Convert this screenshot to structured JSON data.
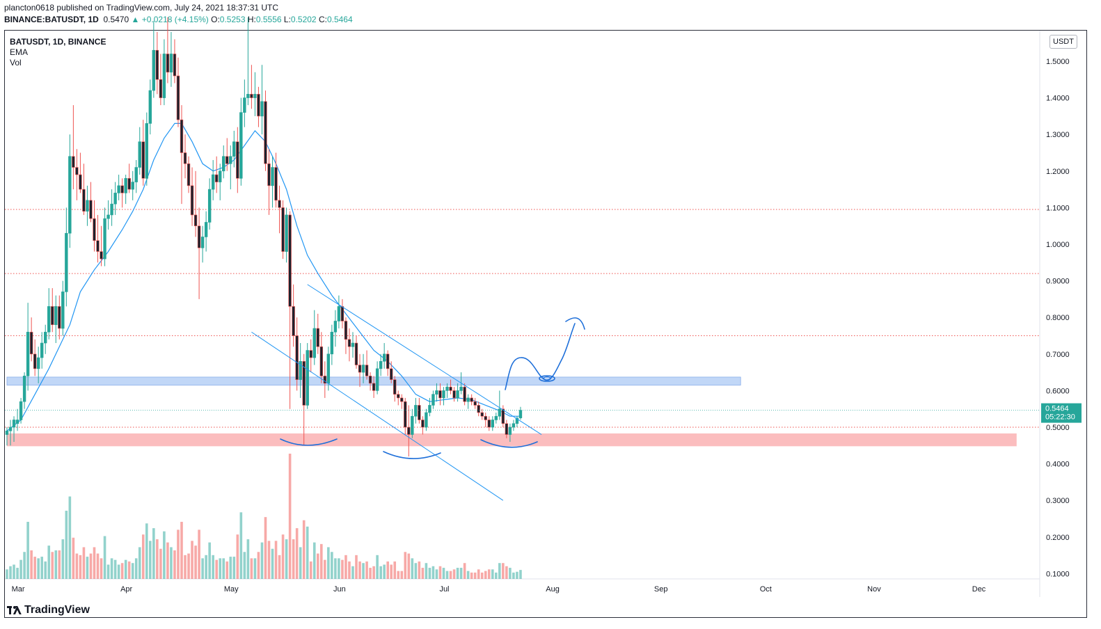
{
  "header": {
    "publisher_line": "plancton0618 published on TradingView.com, July 24, 2021 18:37:31 UTC",
    "symbol_full": "BINANCE:BATUSDT, 1D",
    "price": "0.5470",
    "change": "▲ +0.0218 (+4.15%)",
    "o_label": "O:",
    "o_value": "0.5253",
    "h_label": "H:",
    "h_value": "0.5556",
    "l_label": "L:",
    "l_value": "0.5202",
    "c_label": "C:",
    "c_value": "0.5464"
  },
  "legend": {
    "symbol": "BATUSDT, 1D, BINANCE",
    "indicator_1": "EMA",
    "indicator_2": "Vol"
  },
  "currency_button": "USDT",
  "last_price_label": "0.5464",
  "countdown_label": "05:22:30",
  "brand": "TradingView",
  "colors": {
    "up": "#26a69a",
    "down": "#ef5350",
    "ema": "#2196f3",
    "drawing": "#1e6fd9",
    "resistance_zone": "#bbd3f7",
    "support_zone": "#fbb9bb",
    "level_line": "#ef5350"
  },
  "chart_data": {
    "type": "candlestick",
    "symbol": "BATUSDT",
    "interval": "1D",
    "exchange": "BINANCE",
    "y_axis": {
      "ticks": [
        "1.5000",
        "1.4000",
        "1.3000",
        "1.2000",
        "1.1000",
        "1.0000",
        "0.9000",
        "0.8000",
        "0.7000",
        "0.6000",
        "0.5000",
        "0.4000",
        "0.3000",
        "0.2000",
        "0.1000"
      ],
      "ylim": [
        0.08,
        1.62
      ],
      "scale": "linear"
    },
    "x_axis": {
      "ticks": [
        "Mar",
        "Apr",
        "May",
        "Jun",
        "Jul",
        "Aug",
        "Sep",
        "Oct",
        "Nov",
        "Dec"
      ],
      "start_date": "2021-02-27",
      "end_date": "2021-12-16"
    },
    "horizontal_levels": [
      1.095,
      0.92,
      0.75,
      0.5
    ],
    "zones": [
      {
        "name": "resistance",
        "from_date": "2021-02-27",
        "to_date": "2021-09-25",
        "low": 0.615,
        "high": 0.637
      },
      {
        "name": "support",
        "from_date": "2021-02-27",
        "to_date": "2021-12-13",
        "low": 0.448,
        "high": 0.483
      }
    ],
    "trendlines": [
      {
        "from": [
          "2021-05-24",
          0.89
        ],
        "to": [
          "2021-07-30",
          0.48
        ]
      },
      {
        "from": [
          "2021-05-08",
          0.76
        ],
        "to": [
          "2021-07-19",
          0.3
        ]
      }
    ],
    "ohlc": [
      [
        "2021-02-27",
        0.48,
        0.5,
        0.45,
        0.49
      ],
      [
        "2021-02-28",
        0.49,
        0.52,
        0.45,
        0.5
      ],
      [
        "2021-03-01",
        0.5,
        0.53,
        0.46,
        0.52
      ],
      [
        "2021-03-02",
        0.51,
        0.55,
        0.49,
        0.52
      ],
      [
        "2021-03-03",
        0.52,
        0.58,
        0.51,
        0.57
      ],
      [
        "2021-03-04",
        0.57,
        0.65,
        0.55,
        0.64
      ],
      [
        "2021-03-05",
        0.64,
        0.84,
        0.6,
        0.76
      ],
      [
        "2021-03-06",
        0.76,
        0.8,
        0.68,
        0.7
      ],
      [
        "2021-03-07",
        0.7,
        0.74,
        0.64,
        0.66
      ],
      [
        "2021-03-08",
        0.66,
        0.72,
        0.62,
        0.69
      ],
      [
        "2021-03-09",
        0.69,
        0.76,
        0.66,
        0.73
      ],
      [
        "2021-03-10",
        0.73,
        0.78,
        0.7,
        0.76
      ],
      [
        "2021-03-11",
        0.76,
        0.88,
        0.74,
        0.83
      ],
      [
        "2021-03-12",
        0.83,
        0.88,
        0.76,
        0.78
      ],
      [
        "2021-03-13",
        0.78,
        0.86,
        0.73,
        0.83
      ],
      [
        "2021-03-14",
        0.83,
        0.86,
        0.74,
        0.77
      ],
      [
        "2021-03-15",
        0.77,
        0.9,
        0.75,
        0.87
      ],
      [
        "2021-03-16",
        0.87,
        1.1,
        0.83,
        1.03
      ],
      [
        "2021-03-17",
        1.03,
        1.3,
        0.99,
        1.24
      ],
      [
        "2021-03-18",
        1.24,
        1.38,
        1.15,
        1.21
      ],
      [
        "2021-03-19",
        1.21,
        1.26,
        1.12,
        1.19
      ],
      [
        "2021-03-20",
        1.19,
        1.25,
        1.14,
        1.15
      ],
      [
        "2021-03-21",
        1.15,
        1.22,
        1.08,
        1.09
      ],
      [
        "2021-03-22",
        1.09,
        1.16,
        1.05,
        1.12
      ],
      [
        "2021-03-23",
        1.12,
        1.17,
        1.06,
        1.07
      ],
      [
        "2021-03-24",
        1.07,
        1.12,
        0.98,
        1.01
      ],
      [
        "2021-03-25",
        1.01,
        1.08,
        0.95,
        0.98
      ],
      [
        "2021-03-26",
        0.98,
        1.05,
        0.94,
        0.96
      ],
      [
        "2021-03-27",
        0.96,
        1.1,
        0.94,
        1.07
      ],
      [
        "2021-03-28",
        1.07,
        1.12,
        1.04,
        1.08
      ],
      [
        "2021-03-29",
        1.08,
        1.15,
        1.05,
        1.11
      ],
      [
        "2021-03-30",
        1.11,
        1.17,
        1.08,
        1.14
      ],
      [
        "2021-03-31",
        1.14,
        1.19,
        1.12,
        1.16
      ],
      [
        "2021-04-01",
        1.16,
        1.18,
        1.1,
        1.14
      ],
      [
        "2021-04-02",
        1.14,
        1.19,
        1.11,
        1.18
      ],
      [
        "2021-04-03",
        1.18,
        1.22,
        1.14,
        1.15
      ],
      [
        "2021-04-04",
        1.15,
        1.2,
        1.12,
        1.17
      ],
      [
        "2021-04-05",
        1.17,
        1.23,
        1.14,
        1.21
      ],
      [
        "2021-04-06",
        1.21,
        1.32,
        1.19,
        1.28
      ],
      [
        "2021-04-07",
        1.28,
        1.34,
        1.16,
        1.18
      ],
      [
        "2021-04-08",
        1.18,
        1.36,
        1.16,
        1.33
      ],
      [
        "2021-04-09",
        1.33,
        1.45,
        1.3,
        1.42
      ],
      [
        "2021-04-10",
        1.42,
        1.61,
        1.4,
        1.53
      ],
      [
        "2021-04-11",
        1.53,
        1.58,
        1.41,
        1.45
      ],
      [
        "2021-04-12",
        1.45,
        1.52,
        1.38,
        1.4
      ],
      [
        "2021-04-13",
        1.4,
        1.56,
        1.38,
        1.52
      ],
      [
        "2021-04-14",
        1.52,
        1.62,
        1.44,
        1.47
      ],
      [
        "2021-04-15",
        1.47,
        1.58,
        1.43,
        1.52
      ],
      [
        "2021-04-16",
        1.52,
        1.56,
        1.44,
        1.46
      ],
      [
        "2021-04-17",
        1.46,
        1.51,
        1.32,
        1.34
      ],
      [
        "2021-04-18",
        1.34,
        1.38,
        1.11,
        1.25
      ],
      [
        "2021-04-19",
        1.25,
        1.3,
        1.18,
        1.22
      ],
      [
        "2021-04-20",
        1.22,
        1.24,
        1.14,
        1.16
      ],
      [
        "2021-04-21",
        1.16,
        1.21,
        1.05,
        1.08
      ],
      [
        "2021-04-22",
        1.08,
        1.2,
        1.02,
        1.05
      ],
      [
        "2021-04-23",
        1.05,
        1.1,
        0.85,
        0.99
      ],
      [
        "2021-04-24",
        0.99,
        1.05,
        0.95,
        1.02
      ],
      [
        "2021-04-25",
        1.02,
        1.09,
        0.98,
        1.06
      ],
      [
        "2021-04-26",
        1.06,
        1.18,
        1.04,
        1.15
      ],
      [
        "2021-04-27",
        1.15,
        1.23,
        1.12,
        1.19
      ],
      [
        "2021-04-28",
        1.19,
        1.24,
        1.14,
        1.17
      ],
      [
        "2021-04-29",
        1.17,
        1.22,
        1.12,
        1.2
      ],
      [
        "2021-04-30",
        1.2,
        1.27,
        1.18,
        1.24
      ],
      [
        "2021-05-01",
        1.24,
        1.29,
        1.2,
        1.22
      ],
      [
        "2021-05-02",
        1.22,
        1.27,
        1.15,
        1.24
      ],
      [
        "2021-05-03",
        1.24,
        1.31,
        1.21,
        1.28
      ],
      [
        "2021-05-04",
        1.28,
        1.32,
        1.14,
        1.18
      ],
      [
        "2021-05-05",
        1.18,
        1.4,
        1.16,
        1.36
      ],
      [
        "2021-05-06",
        1.36,
        1.45,
        1.32,
        1.4
      ],
      [
        "2021-05-07",
        1.4,
        1.62,
        1.38,
        1.41
      ],
      [
        "2021-05-08",
        1.41,
        1.49,
        1.37,
        1.4
      ],
      [
        "2021-05-09",
        1.4,
        1.47,
        1.35,
        1.41
      ],
      [
        "2021-05-10",
        1.41,
        1.43,
        1.32,
        1.35
      ],
      [
        "2021-05-11",
        1.35,
        1.49,
        1.3,
        1.39
      ],
      [
        "2021-05-12",
        1.39,
        1.42,
        1.2,
        1.22
      ],
      [
        "2021-05-13",
        1.22,
        1.26,
        1.08,
        1.16
      ],
      [
        "2021-05-14",
        1.16,
        1.24,
        1.1,
        1.21
      ],
      [
        "2021-05-15",
        1.21,
        1.25,
        1.1,
        1.12
      ],
      [
        "2021-05-16",
        1.12,
        1.16,
        1.03,
        1.1
      ],
      [
        "2021-05-17",
        1.1,
        1.12,
        0.96,
        0.98
      ],
      [
        "2021-05-18",
        0.98,
        1.1,
        0.95,
        1.08
      ],
      [
        "2021-05-19",
        1.08,
        1.09,
        0.55,
        0.83
      ],
      [
        "2021-05-20",
        0.83,
        0.89,
        0.72,
        0.75
      ],
      [
        "2021-05-21",
        0.75,
        0.8,
        0.6,
        0.63
      ],
      [
        "2021-05-22",
        0.63,
        0.73,
        0.58,
        0.68
      ],
      [
        "2021-05-23",
        0.68,
        0.7,
        0.45,
        0.56
      ],
      [
        "2021-05-24",
        0.56,
        0.73,
        0.55,
        0.71
      ],
      [
        "2021-05-25",
        0.71,
        0.74,
        0.65,
        0.69
      ],
      [
        "2021-05-26",
        0.69,
        0.82,
        0.67,
        0.77
      ],
      [
        "2021-05-27",
        0.77,
        0.81,
        0.7,
        0.72
      ],
      [
        "2021-05-28",
        0.72,
        0.76,
        0.62,
        0.64
      ],
      [
        "2021-05-29",
        0.64,
        0.68,
        0.58,
        0.62
      ],
      [
        "2021-05-30",
        0.62,
        0.72,
        0.6,
        0.7
      ],
      [
        "2021-05-31",
        0.7,
        0.78,
        0.67,
        0.76
      ],
      [
        "2021-06-01",
        0.76,
        0.82,
        0.72,
        0.79
      ],
      [
        "2021-06-02",
        0.79,
        0.86,
        0.77,
        0.83
      ],
      [
        "2021-06-03",
        0.83,
        0.85,
        0.77,
        0.79
      ],
      [
        "2021-06-04",
        0.79,
        0.8,
        0.7,
        0.74
      ],
      [
        "2021-06-05",
        0.74,
        0.77,
        0.68,
        0.72
      ],
      [
        "2021-06-06",
        0.72,
        0.76,
        0.69,
        0.73
      ],
      [
        "2021-06-07",
        0.73,
        0.75,
        0.66,
        0.67
      ],
      [
        "2021-06-08",
        0.67,
        0.7,
        0.61,
        0.65
      ],
      [
        "2021-06-09",
        0.65,
        0.7,
        0.62,
        0.67
      ],
      [
        "2021-06-10",
        0.67,
        0.71,
        0.63,
        0.64
      ],
      [
        "2021-06-11",
        0.64,
        0.65,
        0.6,
        0.62
      ],
      [
        "2021-06-12",
        0.62,
        0.64,
        0.58,
        0.6
      ],
      [
        "2021-06-13",
        0.6,
        0.68,
        0.59,
        0.66
      ],
      [
        "2021-06-14",
        0.66,
        0.7,
        0.64,
        0.68
      ],
      [
        "2021-06-15",
        0.68,
        0.73,
        0.66,
        0.7
      ],
      [
        "2021-06-16",
        0.7,
        0.71,
        0.64,
        0.66
      ],
      [
        "2021-06-17",
        0.66,
        0.68,
        0.62,
        0.63
      ],
      [
        "2021-06-18",
        0.63,
        0.64,
        0.57,
        0.59
      ],
      [
        "2021-06-19",
        0.59,
        0.6,
        0.56,
        0.58
      ],
      [
        "2021-06-20",
        0.58,
        0.59,
        0.55,
        0.57
      ],
      [
        "2021-06-21",
        0.57,
        0.58,
        0.48,
        0.5
      ],
      [
        "2021-06-22",
        0.5,
        0.56,
        0.42,
        0.48
      ],
      [
        "2021-06-23",
        0.48,
        0.55,
        0.47,
        0.53
      ],
      [
        "2021-06-24",
        0.53,
        0.58,
        0.51,
        0.56
      ],
      [
        "2021-06-25",
        0.56,
        0.58,
        0.51,
        0.52
      ],
      [
        "2021-06-26",
        0.52,
        0.53,
        0.48,
        0.5
      ],
      [
        "2021-06-27",
        0.5,
        0.55,
        0.49,
        0.54
      ],
      [
        "2021-06-28",
        0.54,
        0.58,
        0.53,
        0.56
      ],
      [
        "2021-06-29",
        0.56,
        0.6,
        0.55,
        0.59
      ],
      [
        "2021-06-30",
        0.59,
        0.62,
        0.57,
        0.6
      ],
      [
        "2021-07-01",
        0.6,
        0.62,
        0.56,
        0.58
      ],
      [
        "2021-07-02",
        0.58,
        0.61,
        0.56,
        0.6
      ],
      [
        "2021-07-03",
        0.6,
        0.62,
        0.58,
        0.61
      ],
      [
        "2021-07-04",
        0.61,
        0.63,
        0.59,
        0.6
      ],
      [
        "2021-07-05",
        0.6,
        0.61,
        0.57,
        0.58
      ],
      [
        "2021-07-06",
        0.58,
        0.62,
        0.57,
        0.6
      ],
      [
        "2021-07-07",
        0.6,
        0.65,
        0.59,
        0.61
      ],
      [
        "2021-07-08",
        0.61,
        0.62,
        0.56,
        0.57
      ],
      [
        "2021-07-09",
        0.57,
        0.59,
        0.55,
        0.58
      ],
      [
        "2021-07-10",
        0.58,
        0.59,
        0.56,
        0.57
      ],
      [
        "2021-07-11",
        0.57,
        0.58,
        0.55,
        0.56
      ],
      [
        "2021-07-12",
        0.56,
        0.57,
        0.53,
        0.54
      ],
      [
        "2021-07-13",
        0.54,
        0.55,
        0.52,
        0.53
      ],
      [
        "2021-07-14",
        0.53,
        0.54,
        0.5,
        0.52
      ],
      [
        "2021-07-15",
        0.52,
        0.53,
        0.49,
        0.5
      ],
      [
        "2021-07-16",
        0.5,
        0.53,
        0.49,
        0.52
      ],
      [
        "2021-07-17",
        0.52,
        0.54,
        0.51,
        0.53
      ],
      [
        "2021-07-18",
        0.53,
        0.6,
        0.52,
        0.55
      ],
      [
        "2021-07-19",
        0.55,
        0.56,
        0.5,
        0.51
      ],
      [
        "2021-07-20",
        0.51,
        0.52,
        0.47,
        0.48
      ],
      [
        "2021-07-21",
        0.48,
        0.51,
        0.46,
        0.5
      ],
      [
        "2021-07-22",
        0.5,
        0.52,
        0.49,
        0.51
      ],
      [
        "2021-07-23",
        0.51,
        0.53,
        0.5,
        0.525
      ],
      [
        "2021-07-24",
        0.5253,
        0.5556,
        0.5202,
        0.5464
      ]
    ],
    "ema": [
      [
        "2021-02-27",
        0.49
      ],
      [
        "2021-03-03",
        0.52
      ],
      [
        "2021-03-07",
        0.59
      ],
      [
        "2021-03-11",
        0.66
      ],
      [
        "2021-03-15",
        0.74
      ],
      [
        "2021-03-17",
        0.78
      ],
      [
        "2021-03-20",
        0.87
      ],
      [
        "2021-03-24",
        0.93
      ],
      [
        "2021-03-28",
        0.98
      ],
      [
        "2021-04-01",
        1.04
      ],
      [
        "2021-04-04",
        1.09
      ],
      [
        "2021-04-07",
        1.15
      ],
      [
        "2021-04-10",
        1.23
      ],
      [
        "2021-04-13",
        1.29
      ],
      [
        "2021-04-16",
        1.33
      ],
      [
        "2021-04-18",
        1.33
      ],
      [
        "2021-04-21",
        1.28
      ],
      [
        "2021-04-24",
        1.22
      ],
      [
        "2021-04-27",
        1.2
      ],
      [
        "2021-04-30",
        1.21
      ],
      [
        "2021-05-03",
        1.23
      ],
      [
        "2021-05-06",
        1.27
      ],
      [
        "2021-05-09",
        1.31
      ],
      [
        "2021-05-12",
        1.28
      ],
      [
        "2021-05-15",
        1.22
      ],
      [
        "2021-05-18",
        1.15
      ],
      [
        "2021-05-21",
        1.05
      ],
      [
        "2021-05-24",
        0.97
      ],
      [
        "2021-05-27",
        0.92
      ],
      [
        "2021-05-31",
        0.86
      ],
      [
        "2021-06-04",
        0.81
      ],
      [
        "2021-06-08",
        0.76
      ],
      [
        "2021-06-12",
        0.71
      ],
      [
        "2021-06-16",
        0.68
      ],
      [
        "2021-06-20",
        0.64
      ],
      [
        "2021-06-24",
        0.59
      ],
      [
        "2021-06-28",
        0.57
      ],
      [
        "2021-07-02",
        0.575
      ],
      [
        "2021-07-06",
        0.58
      ],
      [
        "2021-07-10",
        0.575
      ],
      [
        "2021-07-14",
        0.56
      ],
      [
        "2021-07-18",
        0.545
      ],
      [
        "2021-07-21",
        0.53
      ],
      [
        "2021-07-24",
        0.53
      ]
    ],
    "volume_note": "volume bars drawn per candle, colored by direction"
  }
}
